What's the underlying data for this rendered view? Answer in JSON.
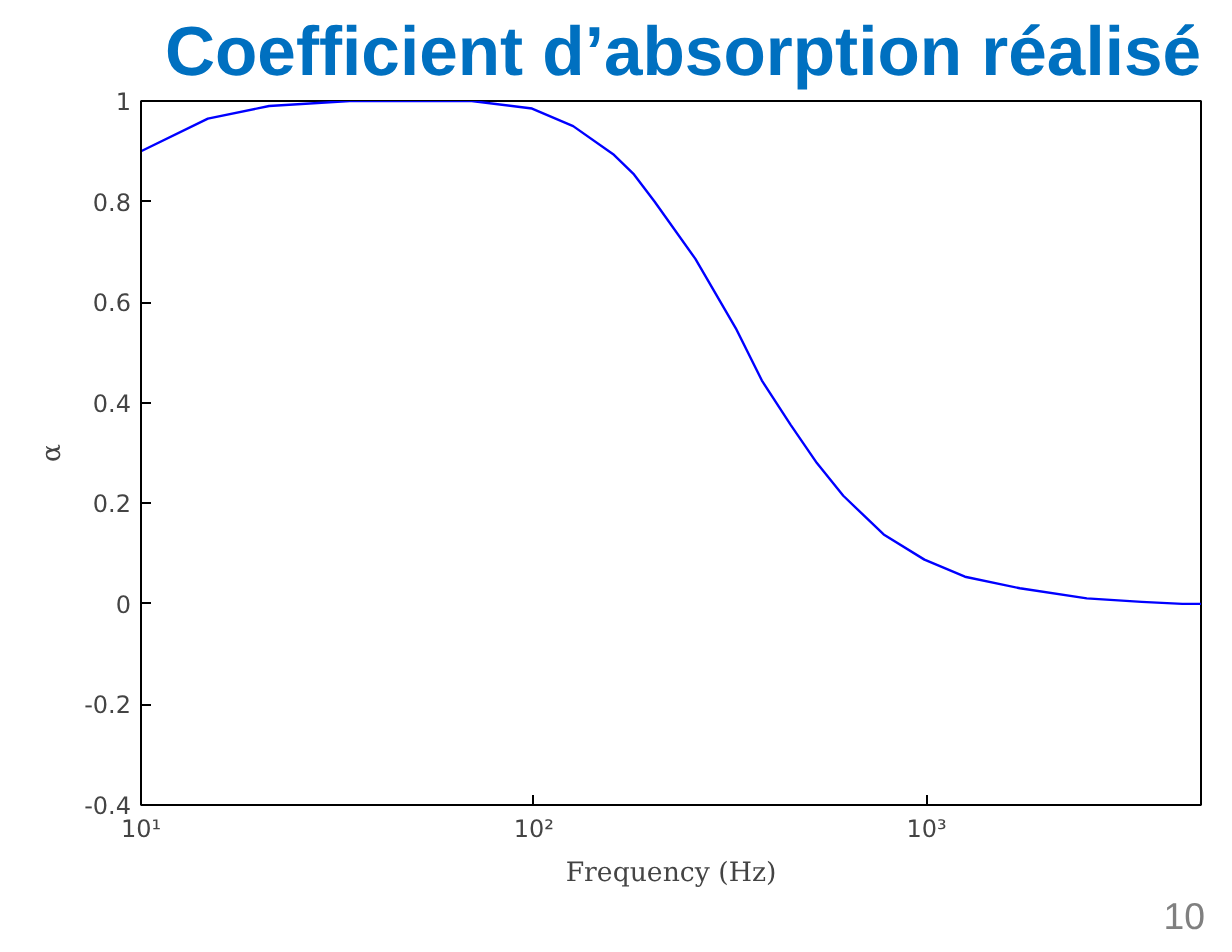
{
  "chart_data": {
    "type": "line",
    "title": "Coefficient d’absorption réalisé",
    "xlabel": "Frequency (Hz)",
    "ylabel": "α",
    "log": "x",
    "x": [
      10,
      14.8,
      21.2,
      34,
      69.5,
      99,
      126,
      160,
      180,
      203,
      258,
      327,
      381,
      451,
      526,
      614,
      778,
      988,
      1253,
      1729,
      2560,
      3531,
      4480,
      5000
    ],
    "series": [
      {
        "color": "#0000ff",
        "values": [
          0.9,
          0.965,
          0.99,
          1.0,
          1.0,
          0.985,
          0.95,
          0.893,
          0.854,
          0.8,
          0.686,
          0.548,
          0.444,
          0.356,
          0.28,
          0.215,
          0.138,
          0.088,
          0.054,
          0.031,
          0.011,
          0.004,
          0.0,
          0.0
        ]
      }
    ],
    "xlim": [
      10,
      5000
    ],
    "ylim": [
      -0.4,
      1
    ],
    "xticks": [
      {
        "value": 10,
        "label": "10¹"
      },
      {
        "value": 100,
        "label": "10²"
      },
      {
        "value": 1000,
        "label": "10³"
      }
    ],
    "yticks": [
      -0.4,
      -0.2,
      0,
      0.2,
      0.4,
      0.6,
      0.8,
      1
    ],
    "grid": false,
    "marker": "none",
    "line_style": "solid",
    "annotations": [
      "10"
    ]
  }
}
